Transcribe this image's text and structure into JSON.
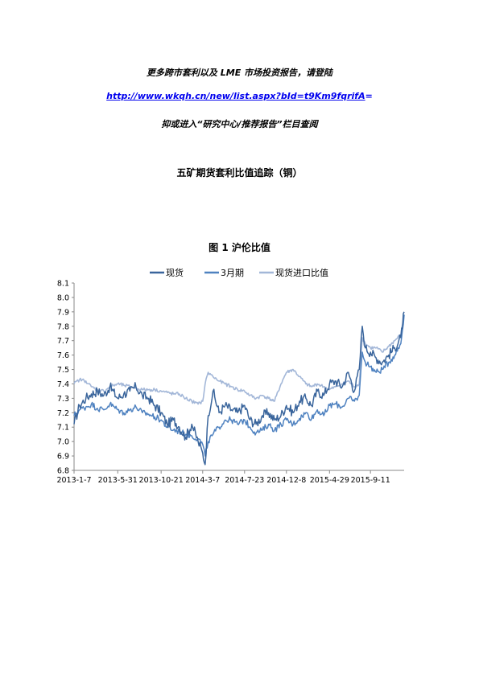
{
  "header": {
    "promo_text": "更多跨市套利以及 LME 市场投资报告，请登陆",
    "link_text": "http://www.wkqh.cn/new/list.aspx?bId=t9Km9fqrifA",
    "link_suffix": "=",
    "research_text": "抑或进入“研究中心/推荐报告”栏目查阅"
  },
  "document": {
    "title": "五矿期货套利比值追踪（铜）"
  },
  "figure": {
    "title": "图 1    沪伦比值"
  },
  "colors": {
    "spot": "#3a659c",
    "three_month": "#4f82c0",
    "import": "#a3b7d8"
  },
  "chart_data": {
    "type": "line",
    "title": "图 1 沪伦比值",
    "xlabel": "",
    "ylabel": "",
    "x_ticks": [
      "2013-1-7",
      "2013-5-31",
      "2013-10-21",
      "2014-3-7",
      "2014-7-23",
      "2014-12-8",
      "2015-4-29",
      "2015-9-11"
    ],
    "x_range": [
      "2013-01-07",
      "2015-12-31"
    ],
    "y_ticks": [
      "6.8",
      "6.9",
      "7.0",
      "7.1",
      "7.2",
      "7.3",
      "7.4",
      "7.5",
      "7.6",
      "7.7",
      "7.8",
      "7.9",
      "8.0",
      "8.1"
    ],
    "ylim": [
      6.8,
      8.1
    ],
    "legend_position": "top",
    "grid": false,
    "series": [
      {
        "name": "现货",
        "x": [
          "2013-01-07",
          "2013-01-25",
          "2013-02-15",
          "2013-03-05",
          "2013-03-25",
          "2013-04-15",
          "2013-05-05",
          "2013-05-31",
          "2013-06-20",
          "2013-07-10",
          "2013-07-30",
          "2013-08-20",
          "2013-09-10",
          "2013-09-30",
          "2013-10-21",
          "2013-11-10",
          "2013-12-01",
          "2013-12-20",
          "2014-01-10",
          "2014-01-30",
          "2014-02-20",
          "2014-03-07",
          "2014-03-15",
          "2014-03-25",
          "2014-04-10",
          "2014-04-30",
          "2014-05-20",
          "2014-06-10",
          "2014-06-30",
          "2014-07-23",
          "2014-08-10",
          "2014-08-30",
          "2014-09-20",
          "2014-10-10",
          "2014-10-30",
          "2014-11-20",
          "2014-12-08",
          "2014-12-30",
          "2015-01-20",
          "2015-02-10",
          "2015-03-01",
          "2015-03-20",
          "2015-04-10",
          "2015-04-29",
          "2015-05-20",
          "2015-06-10",
          "2015-06-30",
          "2015-07-20",
          "2015-08-05",
          "2015-08-15",
          "2015-08-25",
          "2015-09-11",
          "2015-09-30",
          "2015-10-20",
          "2015-11-10",
          "2015-11-30",
          "2015-12-20",
          "2015-12-31"
        ],
        "values": [
          7.12,
          7.25,
          7.3,
          7.33,
          7.35,
          7.32,
          7.38,
          7.3,
          7.33,
          7.35,
          7.38,
          7.32,
          7.3,
          7.25,
          7.2,
          7.12,
          7.15,
          7.1,
          7.03,
          7.12,
          7.0,
          6.92,
          6.84,
          7.18,
          7.35,
          7.2,
          7.25,
          7.22,
          7.2,
          7.25,
          7.15,
          7.12,
          7.18,
          7.2,
          7.15,
          7.18,
          7.25,
          7.2,
          7.28,
          7.3,
          7.25,
          7.35,
          7.32,
          7.4,
          7.42,
          7.38,
          7.48,
          7.35,
          7.5,
          7.8,
          7.65,
          7.62,
          7.58,
          7.55,
          7.6,
          7.65,
          7.72,
          7.9
        ]
      },
      {
        "name": "3月期",
        "x": [
          "2013-01-07",
          "2013-01-25",
          "2013-02-15",
          "2013-03-05",
          "2013-03-25",
          "2013-04-15",
          "2013-05-05",
          "2013-05-31",
          "2013-06-20",
          "2013-07-10",
          "2013-07-30",
          "2013-08-20",
          "2013-09-10",
          "2013-09-30",
          "2013-10-21",
          "2013-11-10",
          "2013-12-01",
          "2013-12-20",
          "2014-01-10",
          "2014-01-30",
          "2014-02-20",
          "2014-03-07",
          "2014-03-15",
          "2014-03-25",
          "2014-04-10",
          "2014-04-30",
          "2014-05-20",
          "2014-06-10",
          "2014-06-30",
          "2014-07-23",
          "2014-08-10",
          "2014-08-30",
          "2014-09-20",
          "2014-10-10",
          "2014-10-30",
          "2014-11-20",
          "2014-12-08",
          "2014-12-30",
          "2015-01-20",
          "2015-02-10",
          "2015-03-01",
          "2015-03-20",
          "2015-04-10",
          "2015-04-29",
          "2015-05-20",
          "2015-06-10",
          "2015-06-30",
          "2015-07-20",
          "2015-08-05",
          "2015-08-15",
          "2015-08-25",
          "2015-09-11",
          "2015-09-30",
          "2015-10-20",
          "2015-11-10",
          "2015-11-30",
          "2015-12-20",
          "2015-12-31"
        ],
        "values": [
          7.18,
          7.22,
          7.24,
          7.26,
          7.23,
          7.22,
          7.26,
          7.22,
          7.2,
          7.22,
          7.24,
          7.2,
          7.19,
          7.17,
          7.15,
          7.1,
          7.08,
          7.07,
          7.05,
          7.04,
          7.02,
          6.98,
          6.9,
          7.0,
          7.05,
          7.1,
          7.15,
          7.15,
          7.12,
          7.15,
          7.1,
          7.06,
          7.08,
          7.12,
          7.08,
          7.12,
          7.15,
          7.12,
          7.16,
          7.2,
          7.16,
          7.22,
          7.18,
          7.25,
          7.26,
          7.24,
          7.3,
          7.28,
          7.32,
          7.62,
          7.55,
          7.52,
          7.48,
          7.5,
          7.55,
          7.6,
          7.68,
          7.88
        ]
      },
      {
        "name": "现货进口比值",
        "x": [
          "2013-01-07",
          "2013-01-25",
          "2013-02-15",
          "2013-03-05",
          "2013-03-25",
          "2013-04-15",
          "2013-05-05",
          "2013-05-31",
          "2013-06-20",
          "2013-07-10",
          "2013-07-30",
          "2013-08-20",
          "2013-09-10",
          "2013-09-30",
          "2013-10-21",
          "2013-11-10",
          "2013-12-01",
          "2013-12-20",
          "2014-01-10",
          "2014-01-30",
          "2014-02-20",
          "2014-03-07",
          "2014-03-15",
          "2014-03-25",
          "2014-04-10",
          "2014-04-30",
          "2014-05-20",
          "2014-06-10",
          "2014-06-30",
          "2014-07-23",
          "2014-08-10",
          "2014-08-30",
          "2014-09-20",
          "2014-10-10",
          "2014-10-30",
          "2014-11-20",
          "2014-12-08",
          "2014-12-30",
          "2015-01-20",
          "2015-02-10",
          "2015-03-01",
          "2015-03-20",
          "2015-04-10",
          "2015-04-29",
          "2015-05-20",
          "2015-06-10",
          "2015-06-30",
          "2015-07-20",
          "2015-08-05",
          "2015-08-15",
          "2015-08-25",
          "2015-09-11",
          "2015-09-30",
          "2015-10-20",
          "2015-11-10",
          "2015-11-30",
          "2015-12-20",
          "2015-12-31"
        ],
        "values": [
          7.4,
          7.43,
          7.42,
          7.38,
          7.36,
          7.35,
          7.38,
          7.4,
          7.39,
          7.38,
          7.37,
          7.36,
          7.36,
          7.36,
          7.35,
          7.34,
          7.33,
          7.33,
          7.3,
          7.28,
          7.26,
          7.28,
          7.4,
          7.48,
          7.45,
          7.42,
          7.4,
          7.38,
          7.36,
          7.35,
          7.32,
          7.3,
          7.32,
          7.3,
          7.28,
          7.4,
          7.48,
          7.5,
          7.45,
          7.4,
          7.38,
          7.4,
          7.38,
          7.36,
          7.38,
          7.4,
          7.42,
          7.38,
          7.4,
          7.72,
          7.68,
          7.65,
          7.65,
          7.62,
          7.66,
          7.7,
          7.74,
          7.88
        ]
      }
    ]
  }
}
